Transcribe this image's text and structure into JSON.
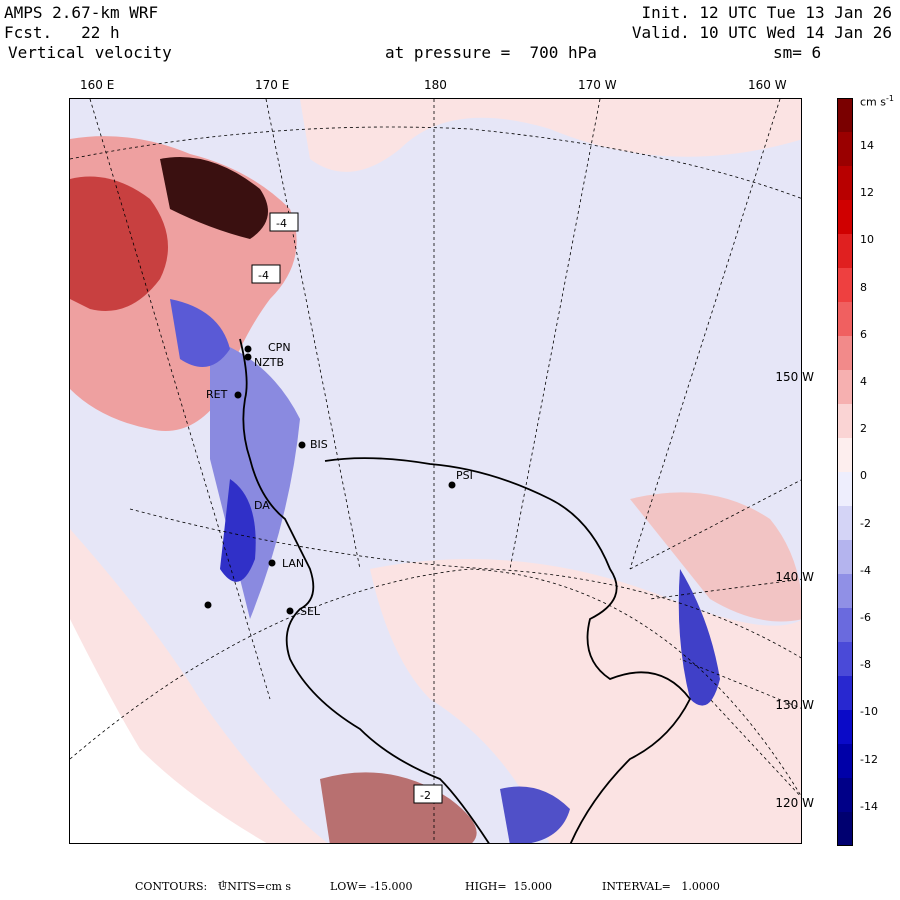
{
  "header": {
    "model": "AMPS 2.67-km WRF",
    "fcst": "Fcst.   22 h",
    "field": "Vertical velocity",
    "init": "Init. 12 UTC Tue 13 Jan 26",
    "valid": "Valid. 10 UTC Wed 14 Jan 26",
    "level": "at pressure =  700 hPa",
    "smoothing": "sm= 6"
  },
  "map": {
    "longitude_labels": [
      "160 E",
      "170 E",
      "180",
      "170 W",
      "160 W"
    ],
    "latitude_labels": [
      "150 W",
      "140 W",
      "130 W",
      "120 W"
    ],
    "stations": [
      "CPN",
      "NZTB",
      "RET",
      "BIS",
      "DA",
      "LAN",
      "SEL",
      "PSI"
    ],
    "contour_labels": [
      "-4",
      "-4",
      "-2"
    ]
  },
  "colorbar": {
    "units_label": "cm s",
    "units_exp": "-1",
    "tick_labels": [
      "14",
      "12",
      "10",
      "8",
      "6",
      "4",
      "2",
      "0",
      "-2",
      "-4",
      "-6",
      "-8",
      "-10",
      "-12",
      "-14"
    ],
    "colors": [
      "#7a0000",
      "#9a0000",
      "#b80000",
      "#d00000",
      "#e02020",
      "#ee4040",
      "#f06060",
      "#f28a8a",
      "#f6b0b0",
      "#fad4d4",
      "#fdeeee",
      "#eeeefd",
      "#d4d4f6",
      "#b4b4ee",
      "#9090e6",
      "#6a6ade",
      "#4a4ad8",
      "#2828d0",
      "#0a0ac8",
      "#0000a8",
      "#000088",
      "#000070"
    ]
  },
  "footer": {
    "contours": "CONTOURS:",
    "units": "UNITS=cm s",
    "units_exp": "-1",
    "low": "LOW= -15.000",
    "high": "HIGH=  15.000",
    "interval": "INTERVAL=   1.0000"
  }
}
